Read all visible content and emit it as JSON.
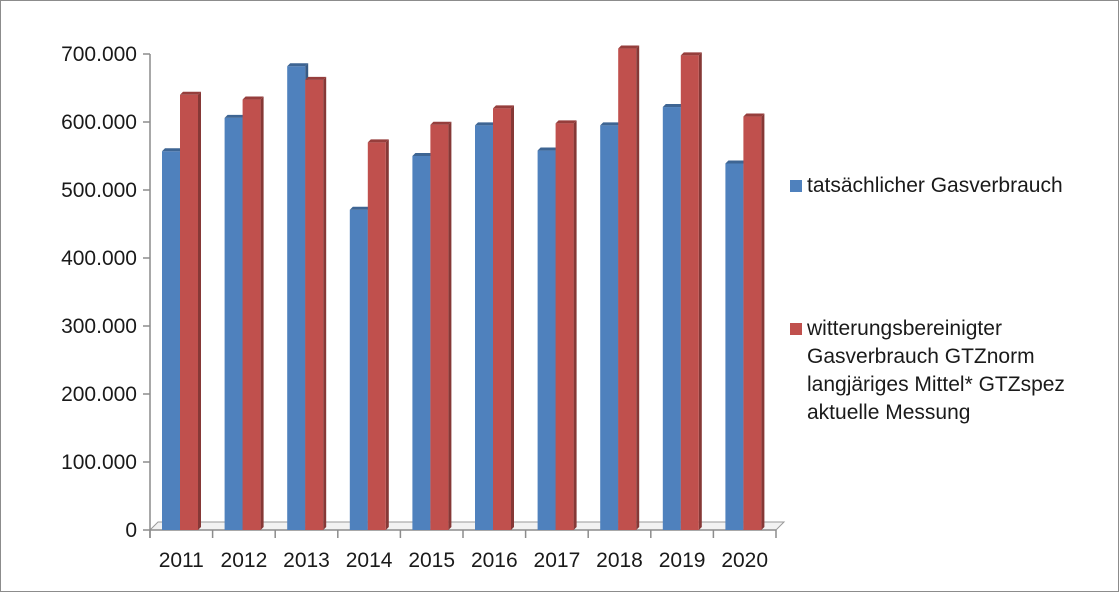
{
  "chart_data": {
    "type": "bar",
    "title": "",
    "xlabel": "",
    "ylabel": "",
    "ylim": [
      0,
      700000
    ],
    "ytick_step": 100000,
    "categories": [
      "2011",
      "2012",
      "2013",
      "2014",
      "2015",
      "2016",
      "2017",
      "2018",
      "2019",
      "2020"
    ],
    "series": [
      {
        "name": "tatsächlicher Gasverbrauch",
        "color": "#4f81bd",
        "values": [
          557000,
          606000,
          682000,
          471000,
          550000,
          595000,
          558000,
          595000,
          622000,
          539000
        ]
      },
      {
        "name": "witterungsbereinigter\nGasverbrauch GTZnorm\nlangjäriges Mittel* GTZspez\naktuelle Messung",
        "color": "#c0504d",
        "values": [
          640000,
          633000,
          662000,
          570000,
          596000,
          620000,
          598000,
          708000,
          698000,
          608000
        ]
      }
    ],
    "ytick_labels": [
      "0",
      "100.000",
      "200.000",
      "300.000",
      "400.000",
      "500.000",
      "600.000",
      "700.000"
    ],
    "grid": false,
    "legend_position": "right",
    "style": "3d-bar"
  }
}
